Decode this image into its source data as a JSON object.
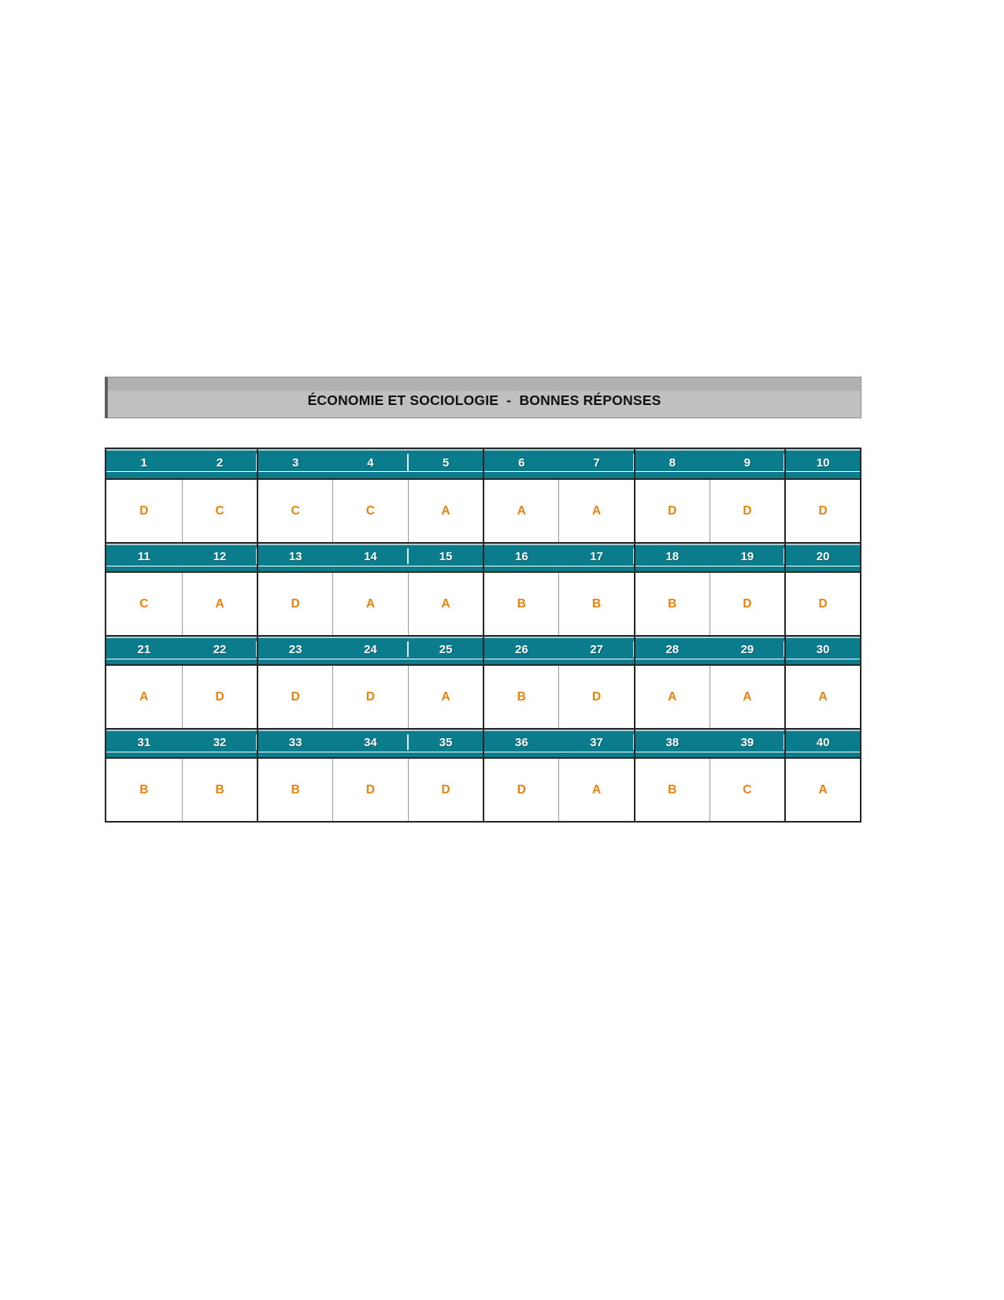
{
  "banner": {
    "title": "ÉCONOMIE ET SOCIOLOGIE  -  BONNES RÉPONSES",
    "background_top": "#b1b1b1",
    "background_bottom": "#c0c0c0",
    "text_color": "#111111"
  },
  "answer_table": {
    "header_color": "#0a7c8c",
    "header_text_color": "#ffffff",
    "answer_text_color": "#e8820d",
    "grid_dark_border": "#262626",
    "grid_thin_border": "#9c9c9c",
    "tick_after_columns": [
      2,
      4,
      7,
      9
    ],
    "sections": [
      {
        "numbers": [
          "1",
          "2",
          "3",
          "4",
          "5",
          "6",
          "7",
          "8",
          "9",
          "10"
        ],
        "answers": [
          "D",
          "C",
          "C",
          "C",
          "A",
          "A",
          "A",
          "D",
          "D",
          "D"
        ]
      },
      {
        "numbers": [
          "11",
          "12",
          "13",
          "14",
          "15",
          "16",
          "17",
          "18",
          "19",
          "20"
        ],
        "answers": [
          "C",
          "A",
          "D",
          "A",
          "A",
          "B",
          "B",
          "B",
          "D",
          "D"
        ]
      },
      {
        "numbers": [
          "21",
          "22",
          "23",
          "24",
          "25",
          "26",
          "27",
          "28",
          "29",
          "30"
        ],
        "answers": [
          "A",
          "D",
          "D",
          "D",
          "A",
          "B",
          "D",
          "A",
          "A",
          "A"
        ]
      },
      {
        "numbers": [
          "31",
          "32",
          "33",
          "34",
          "35",
          "36",
          "37",
          "38",
          "39",
          "40"
        ],
        "answers": [
          "B",
          "B",
          "B",
          "D",
          "D",
          "D",
          "A",
          "B",
          "C",
          "A"
        ]
      }
    ]
  }
}
